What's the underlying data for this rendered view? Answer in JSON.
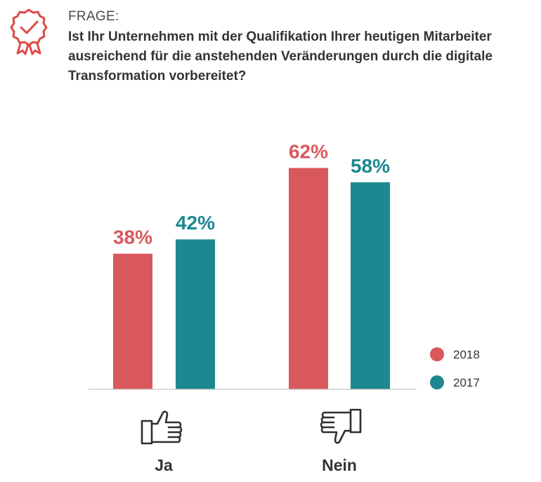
{
  "header": {
    "label": "FRAGE:",
    "question": "Ist Ihr Unternehmen mit der Qualifikation Ihrer heutigen Mitarbeiter ausreichend für die anstehenden Veränderungen durch die digitale Transformation vorbereitet?",
    "badge_icon": "award-checkmark-icon"
  },
  "colors": {
    "2018": "#d9585b",
    "2017": "#1d8890",
    "text": "#333333",
    "axis": "#cfcfcf"
  },
  "chart_data": {
    "type": "bar",
    "categories": [
      "Ja",
      "Nein"
    ],
    "category_icons": [
      "thumbs-up-icon",
      "thumbs-down-icon"
    ],
    "series": [
      {
        "name": "2018",
        "values": [
          38,
          62
        ]
      },
      {
        "name": "2017",
        "values": [
          42,
          58
        ]
      }
    ],
    "value_suffix": "%",
    "ylim": [
      0,
      100
    ],
    "grid": false,
    "legend_position": "bottom-right",
    "title": "",
    "xlabel": "",
    "ylabel": ""
  }
}
